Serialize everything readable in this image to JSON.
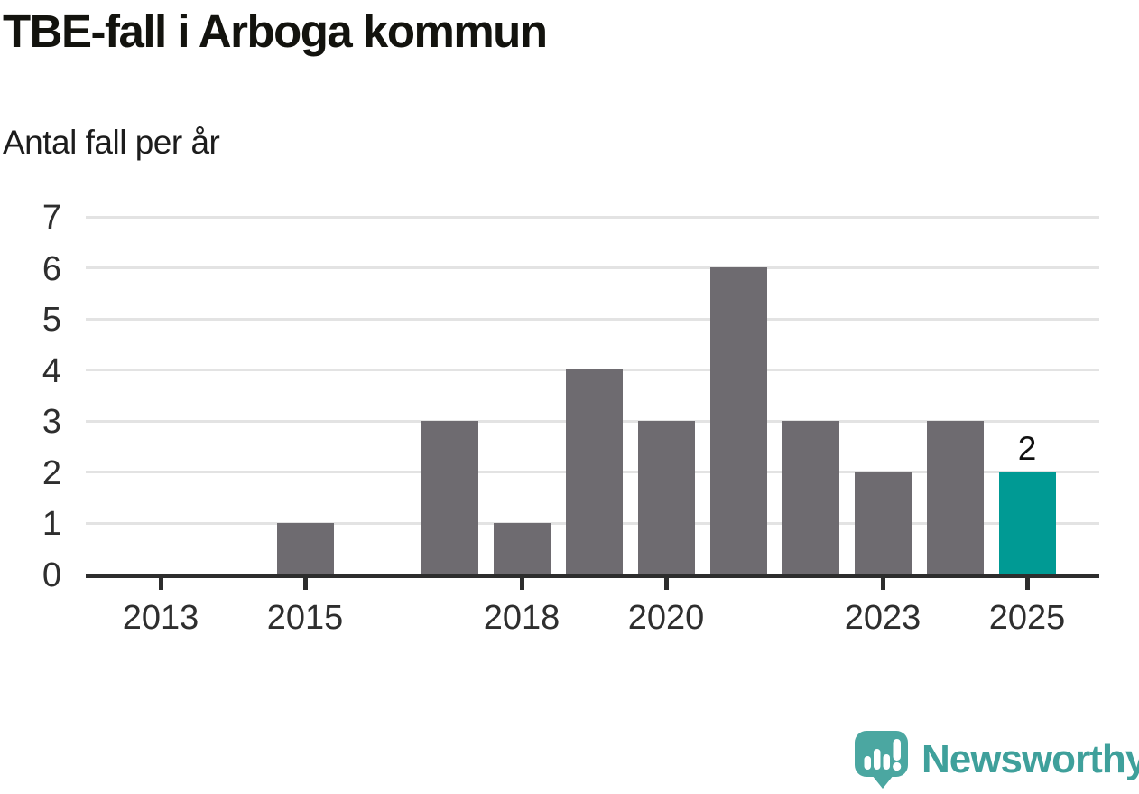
{
  "header": {
    "title": "TBE-fall i Arboga kommun",
    "subtitle": "Antal fall per år"
  },
  "chart_data": {
    "type": "bar",
    "title": "TBE-fall i Arboga kommun",
    "subtitle": "Antal fall per år",
    "ylabel": "Antal fall per år",
    "xlabel": "",
    "categories": [
      "2013",
      "2014",
      "2015",
      "2016",
      "2017",
      "2018",
      "2019",
      "2020",
      "2021",
      "2022",
      "2023",
      "2024",
      "2025"
    ],
    "values": [
      0,
      0,
      1,
      0,
      3,
      1,
      4,
      3,
      6,
      3,
      2,
      3,
      2
    ],
    "highlight_category": "2025",
    "bar_value_labels": {
      "2025": "2"
    },
    "ylim": [
      0,
      7
    ],
    "yticks": [
      0,
      1,
      2,
      3,
      4,
      5,
      6,
      7
    ],
    "xticks": [
      "2013",
      "2015",
      "2018",
      "2020",
      "2023",
      "2025"
    ],
    "grid": true,
    "legend": false,
    "colors": {
      "bar": "#6e6b70",
      "highlight": "#009a94",
      "gridline": "#e3e3e3",
      "axis": "#2d2d2d",
      "tick_label": "#2e2e2e"
    }
  },
  "footer": {
    "brand": "Newsworthy",
    "brand_color": "#3fa09b",
    "logo_icon": "newsworthy-speech-bubble-chart-icon",
    "logo_bubble_color": "#4ba7a1"
  }
}
